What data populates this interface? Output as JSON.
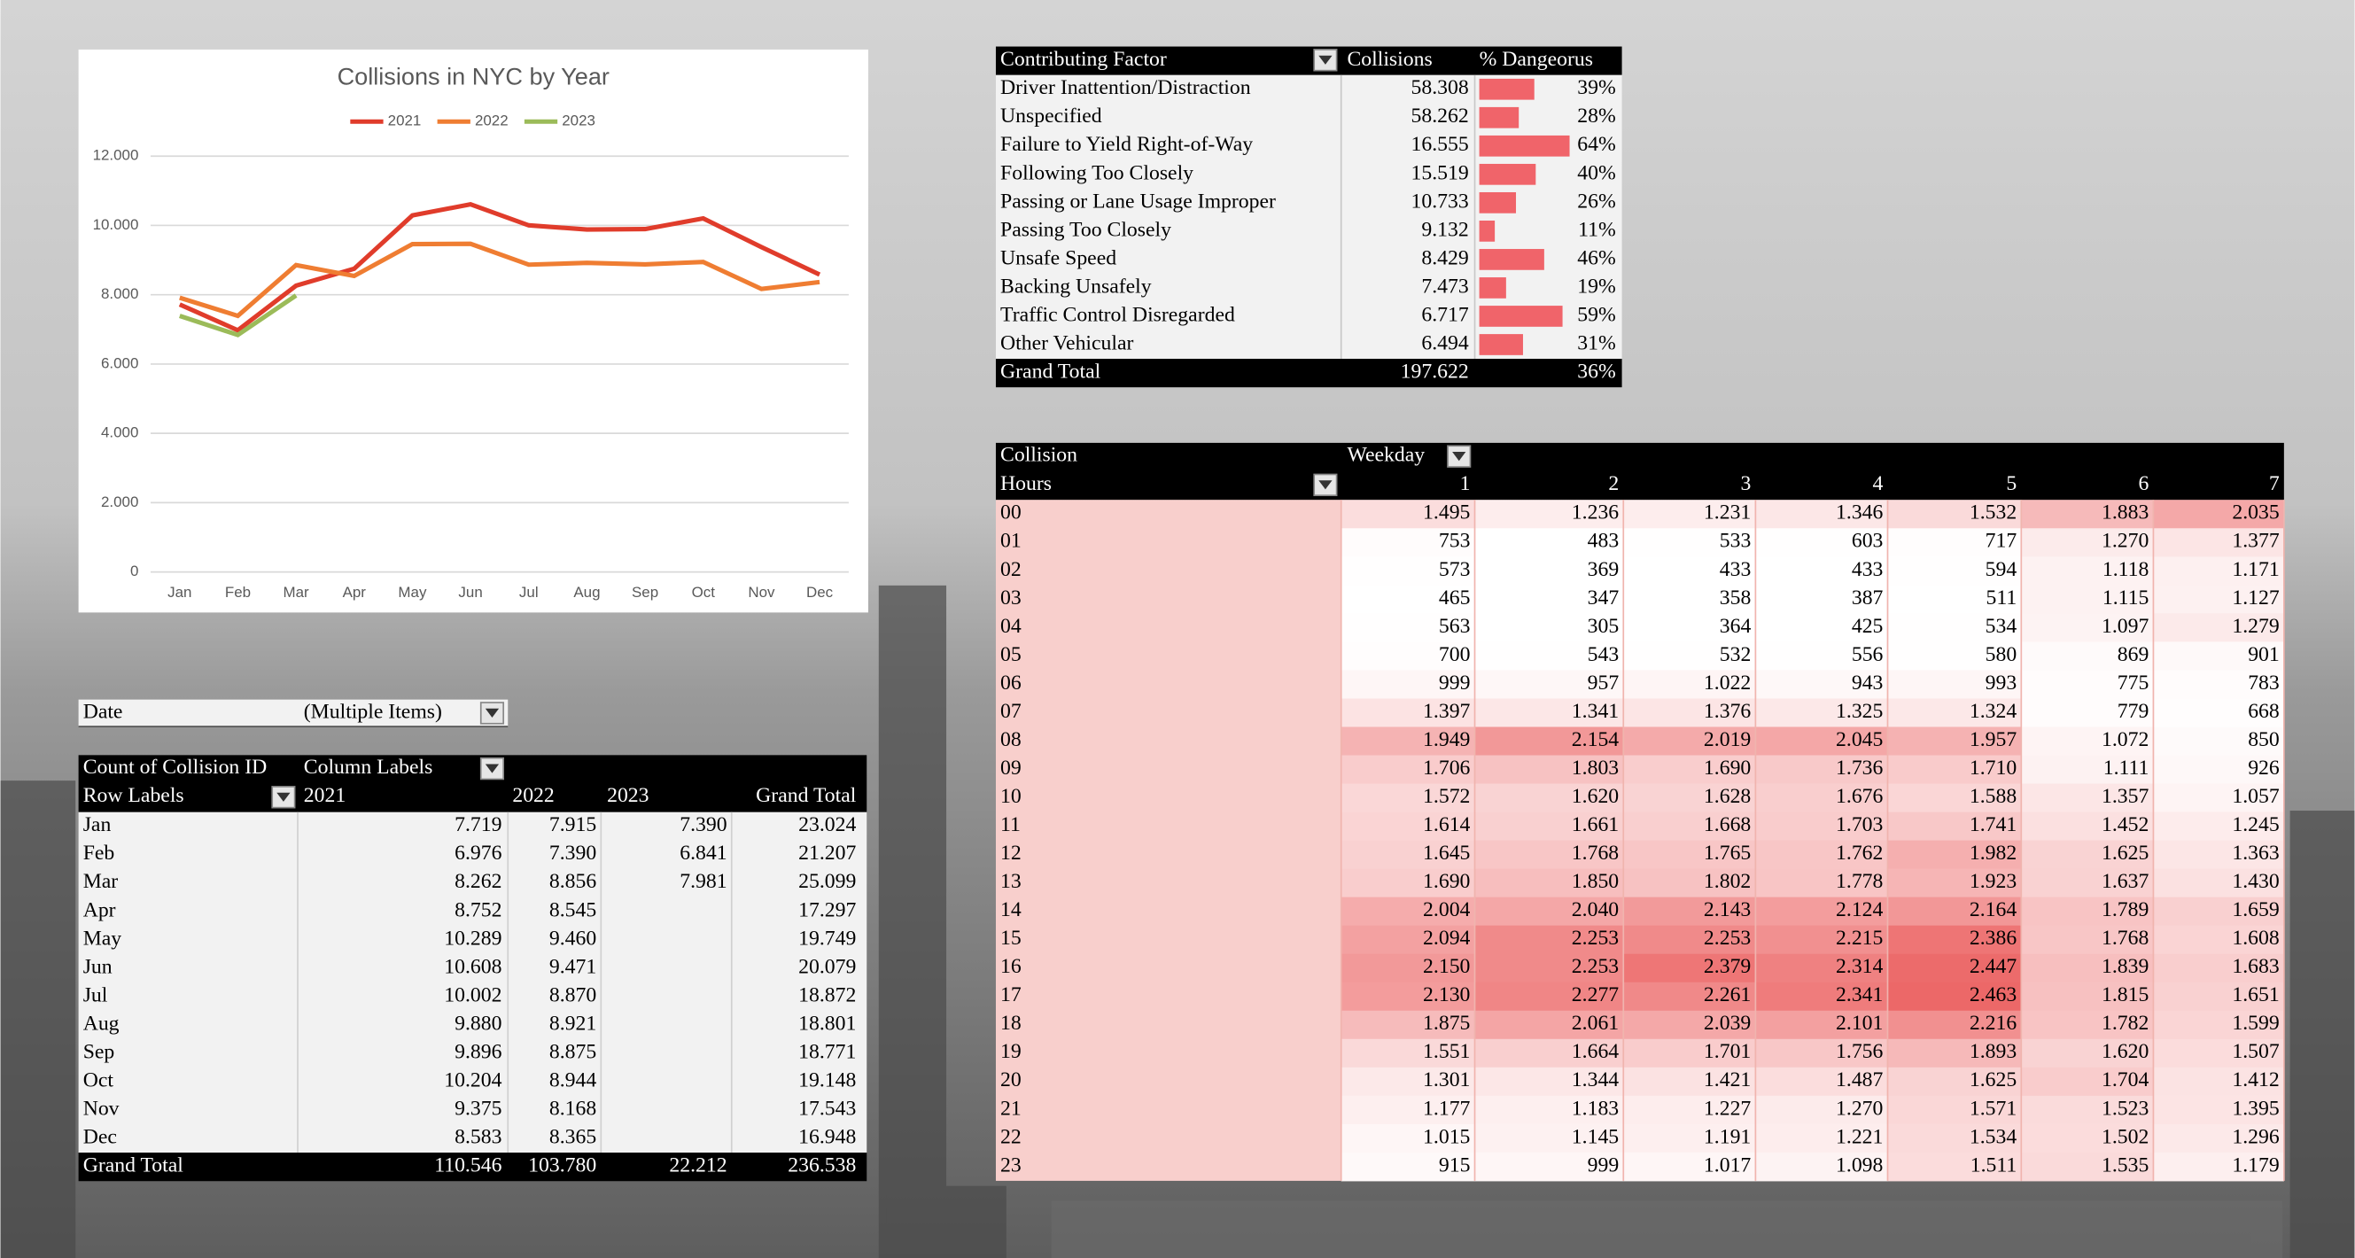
{
  "chart_data": {
    "type": "line",
    "title": "Collisions in NYC by Year",
    "categories": [
      "Jan",
      "Feb",
      "Mar",
      "Apr",
      "May",
      "Jun",
      "Jul",
      "Aug",
      "Sep",
      "Oct",
      "Nov",
      "Dec"
    ],
    "series": [
      {
        "name": "2021",
        "color": "#e03c2b",
        "values": [
          7719,
          6976,
          8262,
          8752,
          10289,
          10608,
          10002,
          9880,
          9896,
          10204,
          9375,
          8583
        ]
      },
      {
        "name": "2022",
        "color": "#ef7d32",
        "values": [
          7915,
          7390,
          8856,
          8545,
          9460,
          9471,
          8870,
          8921,
          8875,
          8944,
          8168,
          8365
        ]
      },
      {
        "name": "2023",
        "color": "#9bbb59",
        "values": [
          7390,
          6841,
          7981,
          null,
          null,
          null,
          null,
          null,
          null,
          null,
          null,
          null
        ]
      }
    ],
    "ylim": [
      0,
      12000
    ],
    "yticks": [
      0,
      {
        "value": 2000,
        "label": "2.000"
      },
      {
        "value": 4000,
        "label": "4.000"
      },
      {
        "value": 6000,
        "label": "6.000"
      },
      {
        "value": 8000,
        "label": "8.000"
      },
      {
        "value": 10000,
        "label": "10.000"
      },
      {
        "value": 12000,
        "label": "12.000"
      }
    ],
    "grid": true,
    "legend": "top"
  },
  "pivot": {
    "filter_label": "Date",
    "filter_value": "(Multiple Items)",
    "measure": "Count of Collision ID",
    "column_labels": "Column Labels",
    "row_labels": "Row Labels",
    "columns": [
      "2021",
      "2022",
      "2023",
      "Grand Total"
    ],
    "rows": [
      [
        "Jan",
        "7.719",
        "7.915",
        "7.390",
        "23.024"
      ],
      [
        "Feb",
        "6.976",
        "7.390",
        "6.841",
        "21.207"
      ],
      [
        "Mar",
        "8.262",
        "8.856",
        "7.981",
        "25.099"
      ],
      [
        "Apr",
        "8.752",
        "8.545",
        null,
        "17.297"
      ],
      [
        "May",
        "10.289",
        "9.460",
        null,
        "19.749"
      ],
      [
        "Jun",
        "10.608",
        "9.471",
        null,
        "20.079"
      ],
      [
        "Jul",
        "10.002",
        "8.870",
        null,
        "18.872"
      ],
      [
        "Aug",
        "9.880",
        "8.921",
        null,
        "18.801"
      ],
      [
        "Sep",
        "9.896",
        "8.875",
        null,
        "18.771"
      ],
      [
        "Oct",
        "10.204",
        "8.944",
        null,
        "19.148"
      ],
      [
        "Nov",
        "9.375",
        "8.168",
        null,
        "17.543"
      ],
      [
        "Dec",
        "8.583",
        "8.365",
        null,
        "16.948"
      ]
    ],
    "total": [
      "Grand Total",
      "110.546",
      "103.780",
      "22.212",
      "236.538"
    ]
  },
  "factors": {
    "headers": [
      "Contributing Factor",
      "Collisions",
      "% Dangeorus"
    ],
    "names": [
      "Driver Inattention/Distraction",
      "Unspecified",
      "Failure to Yield Right-of-Way",
      "Following Too Closely",
      "Passing or Lane Usage Improper",
      "Passing Too Closely",
      "Unsafe Speed",
      "Backing Unsafely",
      "Traffic Control Disregarded",
      "Other Vehicular"
    ],
    "collisions": [
      "58.308",
      "58.262",
      "16.555",
      "15.519",
      "10.733",
      "9.132",
      "8.429",
      "7.473",
      "6.717",
      "6.494"
    ],
    "pct": [
      39,
      28,
      64,
      40,
      26,
      11,
      46,
      19,
      59,
      31
    ],
    "pct_labels": [
      "39%",
      "28%",
      "64%",
      "40%",
      "26%",
      "11%",
      "46%",
      "19%",
      "59%",
      "31%"
    ],
    "total": {
      "label": "Grand Total",
      "collisions": "197.622",
      "pct_label": "36%"
    }
  },
  "heatmap": {
    "row_header_1": "Collision",
    "row_header_2": "Hours",
    "column_header": "Weekday",
    "columns": [
      "1",
      "2",
      "3",
      "4",
      "5",
      "6",
      "7"
    ],
    "rows": [
      "00",
      "01",
      "02",
      "03",
      "04",
      "05",
      "06",
      "07",
      "08",
      "09",
      "10",
      "11",
      "12",
      "13",
      "14",
      "15",
      "16",
      "17",
      "18",
      "19",
      "20",
      "21",
      "22",
      "23"
    ],
    "values": [
      [
        1495,
        1236,
        1231,
        1346,
        1532,
        1883,
        2035
      ],
      [
        753,
        483,
        533,
        603,
        717,
        1270,
        1377
      ],
      [
        573,
        369,
        433,
        433,
        594,
        1118,
        1171
      ],
      [
        465,
        347,
        358,
        387,
        511,
        1115,
        1127
      ],
      [
        563,
        305,
        364,
        425,
        534,
        1097,
        1279
      ],
      [
        700,
        543,
        532,
        556,
        580,
        869,
        901
      ],
      [
        999,
        957,
        1022,
        943,
        993,
        775,
        783
      ],
      [
        1397,
        1341,
        1376,
        1325,
        1324,
        779,
        668
      ],
      [
        1949,
        2154,
        2019,
        2045,
        1957,
        1072,
        850
      ],
      [
        1706,
        1803,
        1690,
        1736,
        1710,
        1111,
        926
      ],
      [
        1572,
        1620,
        1628,
        1676,
        1588,
        1357,
        1057
      ],
      [
        1614,
        1661,
        1668,
        1703,
        1741,
        1452,
        1245
      ],
      [
        1645,
        1768,
        1765,
        1762,
        1982,
        1625,
        1363
      ],
      [
        1690,
        1850,
        1802,
        1778,
        1923,
        1637,
        1430
      ],
      [
        2004,
        2040,
        2143,
        2124,
        2164,
        1789,
        1659
      ],
      [
        2094,
        2253,
        2253,
        2215,
        2386,
        1768,
        1608
      ],
      [
        2150,
        2253,
        2379,
        2314,
        2447,
        1839,
        1683
      ],
      [
        2130,
        2277,
        2261,
        2341,
        2463,
        1815,
        1651
      ],
      [
        1875,
        2061,
        2039,
        2101,
        2216,
        1782,
        1599
      ],
      [
        1551,
        1664,
        1701,
        1756,
        1893,
        1620,
        1507
      ],
      [
        1301,
        1344,
        1421,
        1487,
        1625,
        1704,
        1412
      ],
      [
        1177,
        1183,
        1227,
        1270,
        1571,
        1523,
        1395
      ],
      [
        1015,
        1145,
        1191,
        1221,
        1534,
        1502,
        1296
      ],
      [
        915,
        999,
        1017,
        1098,
        1511,
        1535,
        1179
      ]
    ],
    "value_labels": [
      [
        "1.495",
        "1.236",
        "1.231",
        "1.346",
        "1.532",
        "1.883",
        "2.035"
      ],
      [
        "753",
        "483",
        "533",
        "603",
        "717",
        "1.270",
        "1.377"
      ],
      [
        "573",
        "369",
        "433",
        "433",
        "594",
        "1.118",
        "1.171"
      ],
      [
        "465",
        "347",
        "358",
        "387",
        "511",
        "1.115",
        "1.127"
      ],
      [
        "563",
        "305",
        "364",
        "425",
        "534",
        "1.097",
        "1.279"
      ],
      [
        "700",
        "543",
        "532",
        "556",
        "580",
        "869",
        "901"
      ],
      [
        "999",
        "957",
        "1.022",
        "943",
        "993",
        "775",
        "783"
      ],
      [
        "1.397",
        "1.341",
        "1.376",
        "1.325",
        "1.324",
        "779",
        "668"
      ],
      [
        "1.949",
        "2.154",
        "2.019",
        "2.045",
        "1.957",
        "1.072",
        "850"
      ],
      [
        "1.706",
        "1.803",
        "1.690",
        "1.736",
        "1.710",
        "1.111",
        "926"
      ],
      [
        "1.572",
        "1.620",
        "1.628",
        "1.676",
        "1.588",
        "1.357",
        "1.057"
      ],
      [
        "1.614",
        "1.661",
        "1.668",
        "1.703",
        "1.741",
        "1.452",
        "1.245"
      ],
      [
        "1.645",
        "1.768",
        "1.765",
        "1.762",
        "1.982",
        "1.625",
        "1.363"
      ],
      [
        "1.690",
        "1.850",
        "1.802",
        "1.778",
        "1.923",
        "1.637",
        "1.430"
      ],
      [
        "2.004",
        "2.040",
        "2.143",
        "2.124",
        "2.164",
        "1.789",
        "1.659"
      ],
      [
        "2.094",
        "2.253",
        "2.253",
        "2.215",
        "2.386",
        "1.768",
        "1.608"
      ],
      [
        "2.150",
        "2.253",
        "2.379",
        "2.314",
        "2.447",
        "1.839",
        "1.683"
      ],
      [
        "2.130",
        "2.277",
        "2.261",
        "2.341",
        "2.463",
        "1.815",
        "1.651"
      ],
      [
        "1.875",
        "2.061",
        "2.039",
        "2.101",
        "2.216",
        "1.782",
        "1.599"
      ],
      [
        "1.551",
        "1.664",
        "1.701",
        "1.756",
        "1.893",
        "1.620",
        "1.507"
      ],
      [
        "1.301",
        "1.344",
        "1.421",
        "1.487",
        "1.625",
        "1.704",
        "1.412"
      ],
      [
        "1.177",
        "1.183",
        "1.227",
        "1.270",
        "1.571",
        "1.523",
        "1.395"
      ],
      [
        "1.015",
        "1.145",
        "1.191",
        "1.221",
        "1.534",
        "1.502",
        "1.296"
      ],
      [
        "915",
        "999",
        "1.017",
        "1.098",
        "1.511",
        "1.535",
        "1.179"
      ]
    ]
  }
}
